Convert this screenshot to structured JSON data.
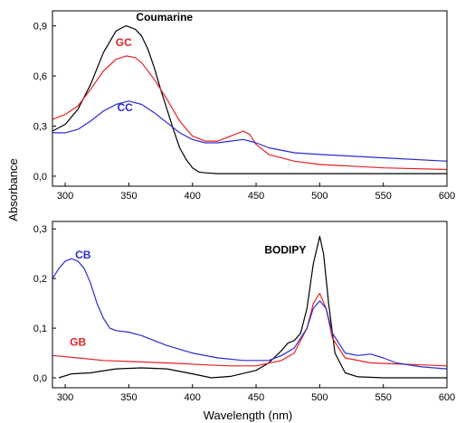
{
  "chart_data": [
    {
      "type": "line",
      "ylabel": "Absorbance",
      "xlabel": "",
      "xlim": [
        290,
        600
      ],
      "ylim": [
        -0.06,
        0.99
      ],
      "xticks": [
        300,
        350,
        400,
        450,
        500,
        550,
        600
      ],
      "yticks": [
        0.0,
        0.3,
        0.6,
        0.9
      ],
      "ytick_labels": [
        "0,0",
        "0,3",
        "0,6",
        "0,9"
      ],
      "grid": false,
      "series": [
        {
          "name": "Coumarine",
          "color": "#000000",
          "x": [
            290,
            300,
            310,
            320,
            330,
            340,
            345,
            348,
            355,
            360,
            365,
            370,
            375,
            380,
            385,
            390,
            395,
            400,
            405,
            410,
            420,
            430,
            450,
            480,
            500,
            550,
            600
          ],
          "y": [
            0.27,
            0.31,
            0.4,
            0.55,
            0.74,
            0.87,
            0.89,
            0.9,
            0.88,
            0.84,
            0.76,
            0.65,
            0.52,
            0.4,
            0.28,
            0.17,
            0.1,
            0.05,
            0.025,
            0.02,
            0.015,
            0.015,
            0.015,
            0.015,
            0.015,
            0.015,
            0.015
          ]
        },
        {
          "name": "GC",
          "color": "#e32222",
          "x": [
            290,
            300,
            310,
            320,
            330,
            340,
            348,
            355,
            360,
            370,
            380,
            390,
            400,
            410,
            420,
            430,
            440,
            445,
            450,
            460,
            480,
            500,
            550,
            600
          ],
          "y": [
            0.34,
            0.37,
            0.42,
            0.52,
            0.63,
            0.7,
            0.72,
            0.71,
            0.68,
            0.58,
            0.46,
            0.33,
            0.24,
            0.21,
            0.21,
            0.24,
            0.27,
            0.25,
            0.19,
            0.13,
            0.09,
            0.07,
            0.05,
            0.04
          ]
        },
        {
          "name": "CC",
          "color": "#2b2bd1",
          "x": [
            290,
            300,
            310,
            320,
            330,
            340,
            350,
            360,
            370,
            380,
            390,
            400,
            410,
            420,
            430,
            440,
            450,
            460,
            480,
            500,
            550,
            600
          ],
          "y": [
            0.26,
            0.26,
            0.28,
            0.33,
            0.39,
            0.43,
            0.45,
            0.43,
            0.38,
            0.32,
            0.26,
            0.22,
            0.2,
            0.2,
            0.21,
            0.22,
            0.2,
            0.17,
            0.14,
            0.13,
            0.11,
            0.09
          ]
        }
      ],
      "annotations": [
        {
          "text": "Coumarine",
          "x": 378,
          "y": 0.93,
          "color": "#000000"
        },
        {
          "text": "GC",
          "x": 346,
          "y": 0.78,
          "color": "#e32222"
        },
        {
          "text": "CC",
          "x": 347,
          "y": 0.39,
          "color": "#2b2bd1"
        }
      ]
    },
    {
      "type": "line",
      "ylabel": "",
      "xlabel": "Wavelength (nm)",
      "xlim": [
        290,
        600
      ],
      "ylim": [
        -0.02,
        0.315
      ],
      "xticks": [
        300,
        350,
        400,
        450,
        500,
        550,
        600
      ],
      "yticks": [
        0.0,
        0.1,
        0.2,
        0.3
      ],
      "ytick_labels": [
        "0,0",
        "0,1",
        "0,2",
        "0,3"
      ],
      "grid": false,
      "series": [
        {
          "name": "BODIPY",
          "color": "#000000",
          "x": [
            295,
            305,
            320,
            340,
            360,
            380,
            400,
            415,
            430,
            450,
            460,
            470,
            475,
            480,
            485,
            490,
            495,
            500,
            503,
            507,
            512,
            520,
            530,
            550,
            600
          ],
          "y": [
            0.0,
            0.008,
            0.01,
            0.018,
            0.02,
            0.018,
            0.008,
            0.0,
            0.003,
            0.015,
            0.03,
            0.055,
            0.07,
            0.075,
            0.09,
            0.14,
            0.23,
            0.285,
            0.25,
            0.15,
            0.05,
            0.01,
            0.002,
            0.0,
            0.0
          ]
        },
        {
          "name": "GB",
          "color": "#e32222",
          "x": [
            290,
            310,
            330,
            350,
            370,
            390,
            410,
            430,
            450,
            470,
            480,
            490,
            495,
            500,
            505,
            510,
            520,
            540,
            560,
            580,
            600
          ],
          "y": [
            0.045,
            0.04,
            0.035,
            0.033,
            0.031,
            0.029,
            0.026,
            0.024,
            0.024,
            0.035,
            0.05,
            0.1,
            0.15,
            0.17,
            0.14,
            0.08,
            0.04,
            0.03,
            0.028,
            0.026,
            0.024
          ]
        },
        {
          "name": "CB",
          "color": "#2b2bd1",
          "x": [
            290,
            295,
            300,
            305,
            310,
            315,
            320,
            325,
            330,
            335,
            340,
            350,
            360,
            370,
            380,
            400,
            420,
            440,
            460,
            470,
            480,
            490,
            495,
            500,
            505,
            510,
            520,
            530,
            540,
            550,
            560,
            580,
            600
          ],
          "y": [
            0.2,
            0.22,
            0.235,
            0.24,
            0.235,
            0.22,
            0.19,
            0.15,
            0.12,
            0.1,
            0.095,
            0.092,
            0.085,
            0.075,
            0.065,
            0.05,
            0.04,
            0.035,
            0.035,
            0.045,
            0.06,
            0.1,
            0.14,
            0.155,
            0.14,
            0.09,
            0.05,
            0.045,
            0.048,
            0.04,
            0.03,
            0.022,
            0.018
          ]
        }
      ],
      "annotations": [
        {
          "text": "CB",
          "x": 314,
          "y": 0.24,
          "color": "#2b2bd1"
        },
        {
          "text": "BODIPY",
          "x": 473,
          "y": 0.25,
          "color": "#000000"
        },
        {
          "text": "GB",
          "x": 310,
          "y": 0.065,
          "color": "#e32222"
        }
      ]
    }
  ]
}
